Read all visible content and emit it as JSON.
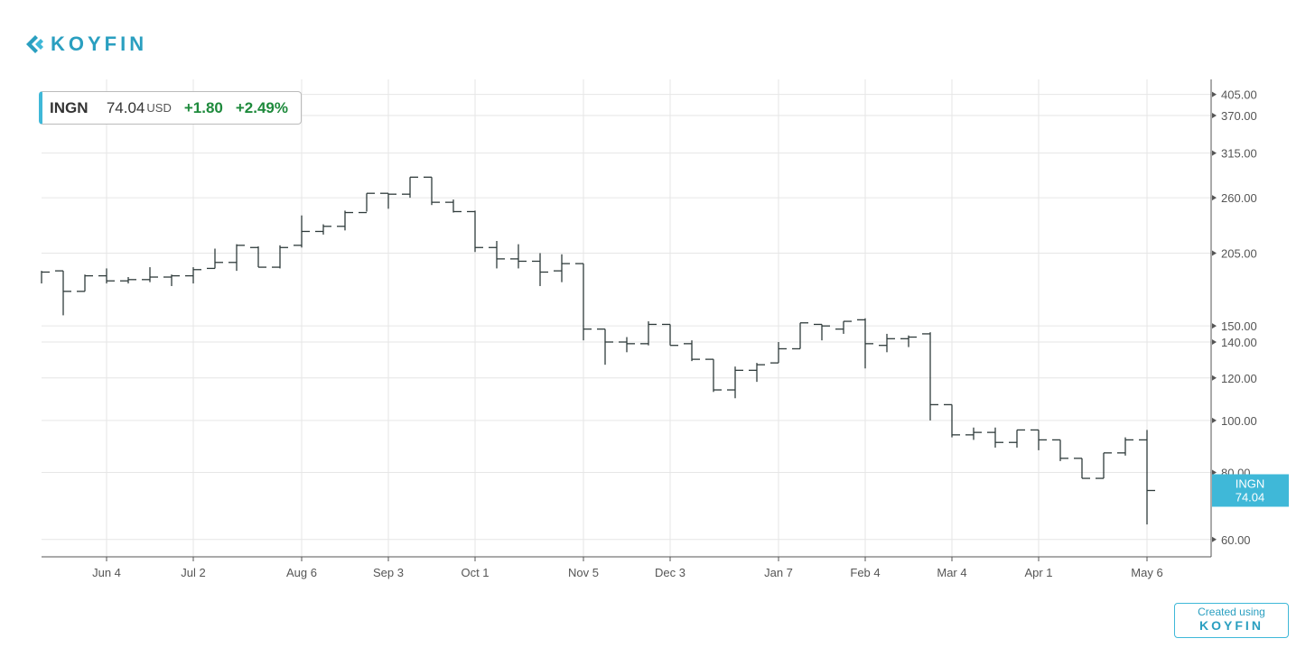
{
  "brand": "KOYFIN",
  "quote": {
    "symbol": "INGN",
    "price": "74.04",
    "currency": "USD",
    "change": "+1.80",
    "change_pct": "+2.49%"
  },
  "footer": {
    "text": "Created using",
    "brand": "KOYFIN"
  },
  "chart_data": {
    "type": "ohlc",
    "name": "INGN",
    "color": "#2f3b3b",
    "categories": [
      null,
      null,
      null,
      "Jun 4",
      null,
      null,
      null,
      "Jul 2",
      null,
      null,
      null,
      null,
      "Aug 6",
      null,
      null,
      null,
      "Sep 3",
      null,
      null,
      null,
      "Oct 1",
      null,
      null,
      null,
      null,
      "Nov 5",
      null,
      null,
      null,
      "Dec 3",
      null,
      null,
      null,
      null,
      "Jan 7",
      null,
      null,
      null,
      "Feb 4",
      null,
      null,
      null,
      "Mar 4",
      null,
      null,
      null,
      "Apr 1",
      null,
      null,
      null,
      null,
      "May 6"
    ],
    "open": [
      188,
      190,
      174,
      186,
      182,
      183,
      185,
      186,
      192,
      197,
      210,
      193,
      212,
      225,
      230,
      244,
      265,
      264,
      284,
      255,
      245,
      210,
      200,
      198,
      190,
      196,
      148,
      140,
      139,
      151,
      139,
      130,
      114,
      124,
      128,
      136,
      151,
      148,
      154,
      138,
      142,
      145,
      107,
      94,
      95,
      91,
      96,
      92,
      85,
      78,
      87,
      92
    ],
    "high": [
      190,
      190,
      187,
      192,
      185,
      193,
      187,
      193,
      209,
      213,
      211,
      212,
      241,
      232,
      246,
      265,
      265,
      284,
      284,
      258,
      246,
      216,
      213,
      205,
      204,
      196,
      148,
      143,
      153,
      151,
      141,
      130,
      126,
      128,
      140,
      152,
      151,
      153,
      155,
      145,
      144,
      146,
      107,
      97,
      97,
      96,
      96,
      92,
      85,
      87,
      93,
      96
    ],
    "low": [
      180,
      157,
      174,
      180,
      180,
      181,
      178,
      180,
      192,
      190,
      193,
      192,
      210,
      222,
      226,
      245,
      248,
      260,
      252,
      244,
      206,
      192,
      192,
      178,
      181,
      141,
      127,
      134,
      138,
      138,
      129,
      113,
      110,
      118,
      128,
      136,
      141,
      145,
      125,
      134,
      137,
      100,
      93,
      92,
      89,
      89,
      88,
      84,
      78,
      78,
      86,
      64
    ],
    "close": [
      189,
      174,
      186,
      182,
      183,
      185,
      186,
      191,
      197,
      212,
      193,
      210,
      225,
      230,
      244,
      265,
      264,
      284,
      255,
      245,
      210,
      200,
      198,
      189,
      196,
      148,
      140,
      139,
      151,
      138,
      130,
      114,
      124,
      127,
      136,
      152,
      150,
      153,
      139,
      142,
      143,
      107,
      94,
      95,
      91,
      96,
      92,
      85,
      78,
      87,
      92,
      74.04
    ],
    "ylim": [
      55.7,
      432
    ],
    "log_scale": true,
    "grid": true,
    "yticks": [
      {
        "value": 60,
        "label": "60.00"
      },
      {
        "value": 80,
        "label": "80.00"
      },
      {
        "value": 100,
        "label": "100.00"
      },
      {
        "value": 120,
        "label": "120.00"
      },
      {
        "value": 140,
        "label": "140.00"
      },
      {
        "value": 150,
        "label": "150.00"
      },
      {
        "value": 205,
        "label": "205.00"
      },
      {
        "value": 260,
        "label": "260.00"
      },
      {
        "value": 315,
        "label": "315.00"
      },
      {
        "value": 370,
        "label": "370.00"
      },
      {
        "value": 405,
        "label": "405.00"
      }
    ]
  }
}
